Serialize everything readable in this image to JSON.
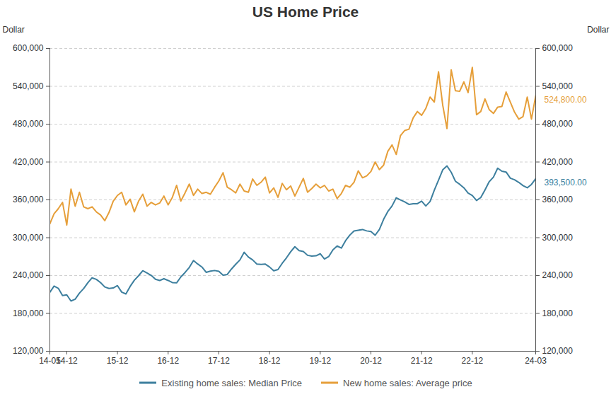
{
  "chart_data": {
    "type": "line",
    "title": "US Home Price",
    "ylabel": "Dollar",
    "y2label": "Dollar",
    "categories": [
      "14-05",
      null,
      null,
      null,
      "14-12",
      null,
      null,
      null,
      null,
      null,
      null,
      null,
      null,
      null,
      null,
      null,
      "15-12",
      null,
      null,
      null,
      null,
      null,
      null,
      null,
      null,
      null,
      null,
      null,
      "16-12",
      null,
      null,
      null,
      null,
      null,
      null,
      null,
      null,
      null,
      null,
      null,
      "17-12",
      null,
      null,
      null,
      null,
      null,
      null,
      null,
      null,
      null,
      null,
      null,
      "18-12",
      null,
      null,
      null,
      null,
      null,
      null,
      null,
      null,
      null,
      null,
      null,
      "19-12",
      null,
      null,
      null,
      null,
      null,
      null,
      null,
      null,
      null,
      null,
      null,
      "20-12",
      null,
      null,
      null,
      null,
      null,
      null,
      null,
      null,
      null,
      null,
      null,
      "21-12",
      null,
      null,
      null,
      null,
      null,
      null,
      null,
      null,
      null,
      null,
      null,
      "22-12",
      null,
      null,
      null,
      null,
      null,
      null,
      null,
      null,
      null,
      null,
      null,
      null,
      null,
      null,
      "24-03"
    ],
    "series": [
      {
        "name": "Existing home sales: Median Price",
        "color": "#3d7f9e",
        "values": [
          213400,
          223300,
          219800,
          208300,
          209500,
          199600,
          202600,
          212100,
          219400,
          228700,
          236400,
          234000,
          228700,
          221900,
          219600,
          220300,
          224100,
          213800,
          210800,
          222700,
          232500,
          239700,
          247600,
          244100,
          240200,
          234200,
          232200,
          234900,
          232200,
          228900,
          228400,
          237800,
          244800,
          252800,
          263800,
          258300,
          253500,
          245100,
          247000,
          248000,
          246800,
          240500,
          241700,
          250400,
          257900,
          264800,
          276900,
          269300,
          264800,
          258300,
          257700,
          258100,
          253600,
          247500,
          249500,
          259400,
          268000,
          277700,
          285700,
          279600,
          278200,
          272100,
          270900,
          271300,
          274500,
          266300,
          270100,
          280700,
          286800,
          283500,
          295300,
          304100,
          310600,
          311800,
          313000,
          310800,
          309800,
          303900,
          313000,
          329100,
          341600,
          350300,
          363300,
          359900,
          356700,
          352800,
          353900,
          353900,
          358000,
          350300,
          357300,
          375300,
          391200,
          407600,
          413800,
          403800,
          389500,
          384800,
          379100,
          370700,
          366900,
          359000,
          363700,
          375700,
          388800,
          396100,
          410200,
          405400,
          404100,
          394300,
          391800,
          387700,
          382600,
          379100,
          384500,
          393500
        ]
      },
      {
        "name": "New home sales: Average price",
        "color": "#e69f3a",
        "axis": "y2",
        "values": [
          322000,
          338000,
          346000,
          356000,
          320000,
          377000,
          350000,
          372000,
          349000,
          346000,
          349000,
          341000,
          336000,
          327000,
          340000,
          358000,
          367000,
          372000,
          352000,
          361000,
          341000,
          358000,
          369000,
          350000,
          356000,
          352000,
          355000,
          366000,
          352000,
          364000,
          383000,
          358000,
          371000,
          385000,
          367000,
          377000,
          370000,
          372000,
          369000,
          380000,
          390000,
          403000,
          380000,
          376000,
          371000,
          385000,
          374000,
          372000,
          393000,
          383000,
          388000,
          396000,
          371000,
          379000,
          364000,
          386000,
          376000,
          382000,
          366000,
          380000,
          394000,
          372000,
          378000,
          385000,
          379000,
          383000,
          374000,
          377000,
          362000,
          370000,
          383000,
          380000,
          388000,
          406000,
          395000,
          398000,
          405000,
          420000,
          408000,
          415000,
          437000,
          447000,
          432000,
          462000,
          470000,
          472000,
          490000,
          500000,
          494000,
          505000,
          523000,
          515000,
          563000,
          510000,
          473000,
          566000,
          533000,
          532000,
          547000,
          530000,
          570000,
          495000,
          500000,
          520000,
          503000,
          497000,
          507000,
          508000,
          531000,
          515000,
          499000,
          488000,
          492000,
          523000,
          488000,
          524800
        ]
      }
    ],
    "ylim": [
      120000,
      600000
    ],
    "yticks": [
      {
        "value": 120000,
        "label": "120,000"
      },
      {
        "value": 180000,
        "label": "180,000"
      },
      {
        "value": 240000,
        "label": "240,000"
      },
      {
        "value": 300000,
        "label": "300,000"
      },
      {
        "value": 360000,
        "label": "360,000"
      },
      {
        "value": 420000,
        "label": "420,000"
      },
      {
        "value": 480000,
        "label": "480,000"
      },
      {
        "value": 540000,
        "label": "540,000"
      },
      {
        "value": 600000,
        "label": "600,000"
      }
    ],
    "y2lim": [
      120000,
      600000
    ],
    "y2ticks": [
      {
        "value": 120000,
        "label": "120,000"
      },
      {
        "value": 180000,
        "label": "180,000"
      },
      {
        "value": 240000,
        "label": "240,000"
      },
      {
        "value": 300000,
        "label": "300,000"
      },
      {
        "value": 360000,
        "label": "360,000"
      },
      {
        "value": 420000,
        "label": "420,000"
      },
      {
        "value": 480000,
        "label": "480,000"
      },
      {
        "value": 540000,
        "label": "540,000"
      },
      {
        "value": 600000,
        "label": "600,000"
      }
    ],
    "grid": true,
    "legend": "bottom",
    "annotations": [
      {
        "text": "524,800.00",
        "x": "24-03",
        "y": 524800,
        "axis": "y2",
        "color": "#e69f3a"
      },
      {
        "text": "393,500.00",
        "x": "24-03",
        "y": 393500,
        "color": "#3d7f9e"
      }
    ]
  }
}
